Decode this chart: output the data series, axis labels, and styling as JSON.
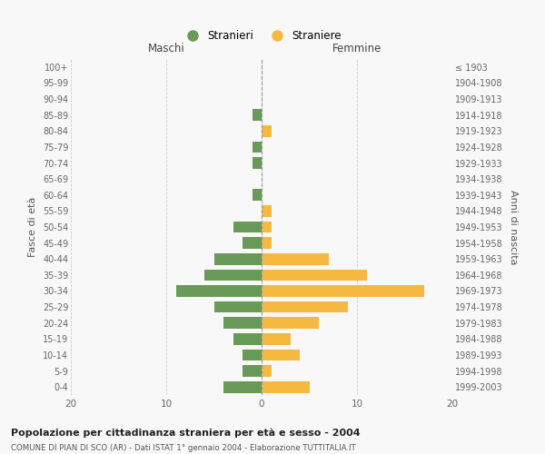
{
  "age_groups": [
    "0-4",
    "5-9",
    "10-14",
    "15-19",
    "20-24",
    "25-29",
    "30-34",
    "35-39",
    "40-44",
    "45-49",
    "50-54",
    "55-59",
    "60-64",
    "65-69",
    "70-74",
    "75-79",
    "80-84",
    "85-89",
    "90-94",
    "95-99",
    "100+"
  ],
  "birth_years": [
    "1999-2003",
    "1994-1998",
    "1989-1993",
    "1984-1988",
    "1979-1983",
    "1974-1978",
    "1969-1973",
    "1964-1968",
    "1959-1963",
    "1954-1958",
    "1949-1953",
    "1944-1948",
    "1939-1943",
    "1934-1938",
    "1929-1933",
    "1924-1928",
    "1919-1923",
    "1914-1918",
    "1909-1913",
    "1904-1908",
    "≤ 1903"
  ],
  "maschi": [
    4,
    2,
    2,
    3,
    4,
    5,
    9,
    6,
    5,
    2,
    3,
    0,
    1,
    0,
    1,
    1,
    0,
    1,
    0,
    0,
    0
  ],
  "femmine": [
    5,
    1,
    4,
    3,
    6,
    9,
    17,
    11,
    7,
    1,
    1,
    1,
    0,
    0,
    0,
    0,
    1,
    0,
    0,
    0,
    0
  ],
  "color_maschi": "#6a9a5a",
  "color_femmine": "#f5b942",
  "title": "Popolazione per cittadinanza straniera per età e sesso - 2004",
  "subtitle": "COMUNE DI PIAN DI SCO (AR) - Dati ISTAT 1° gennaio 2004 - Elaborazione TUTTITALIA.IT",
  "xlabel_left": "Maschi",
  "xlabel_right": "Femmine",
  "ylabel_left": "Fasce di età",
  "ylabel_right": "Anni di nascita",
  "legend_maschi": "Stranieri",
  "legend_femmine": "Straniere",
  "xlim": 20,
  "background_color": "#f8f8f8",
  "grid_color": "#cccccc"
}
